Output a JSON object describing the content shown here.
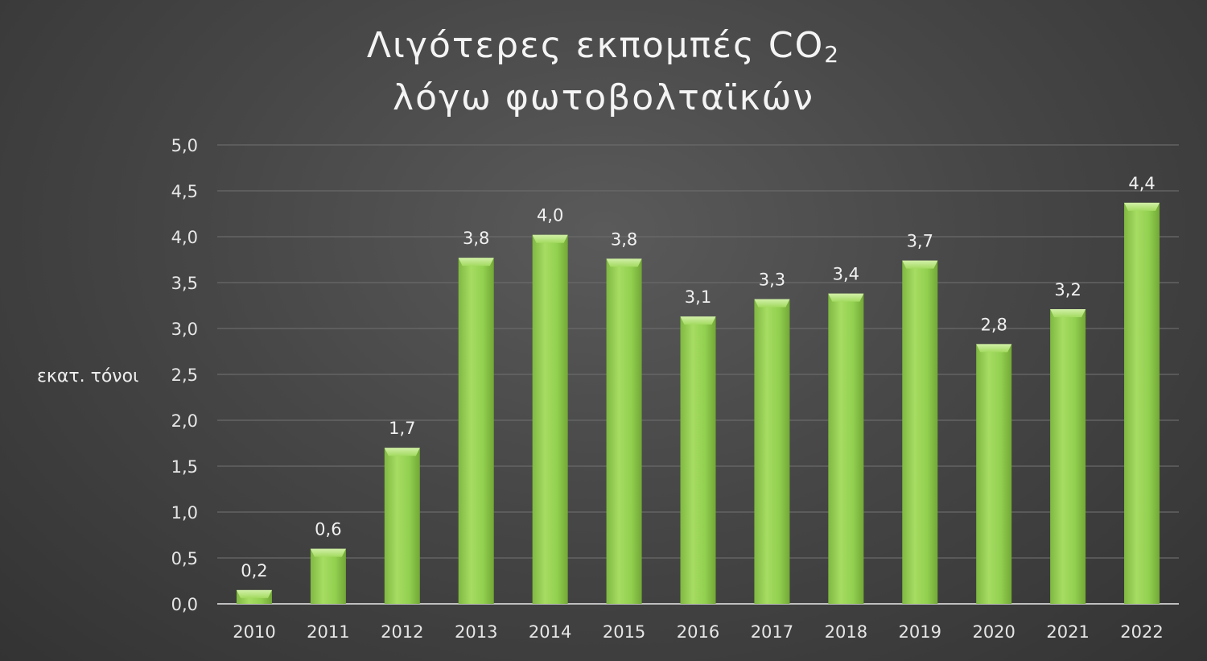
{
  "chart_data": {
    "type": "bar",
    "title_main": "Λιγότερες εκπομπές CO",
    "title_subscript": "2",
    "title_line2": "λόγω φωτοβολταϊκών",
    "ylabel": "εκατ. τόνοι",
    "xlabel": "",
    "categories": [
      "2010",
      "2011",
      "2012",
      "2013",
      "2014",
      "2015",
      "2016",
      "2017",
      "2018",
      "2019",
      "2020",
      "2021",
      "2022"
    ],
    "values": [
      0.15,
      0.6,
      1.7,
      3.77,
      4.02,
      3.76,
      3.13,
      3.32,
      3.38,
      3.74,
      2.83,
      3.21,
      4.37
    ],
    "data_labels": [
      "0,2",
      "0,6",
      "1,7",
      "3,8",
      "4,0",
      "3,8",
      "3,1",
      "3,3",
      "3,4",
      "3,7",
      "2,8",
      "3,2",
      "4,4"
    ],
    "ylim": [
      0,
      5
    ],
    "yticks": [
      0,
      0.5,
      1,
      1.5,
      2,
      2.5,
      3,
      3.5,
      4,
      4.5,
      5
    ],
    "ytick_labels": [
      "0,0",
      "0,5",
      "1,0",
      "1,5",
      "2,0",
      "2,5",
      "3,0",
      "3,5",
      "4,0",
      "4,5",
      "5,0"
    ],
    "grid": true,
    "legend": "none",
    "colors": {
      "bar": "#92d050",
      "bar_highlight": "#b6e27e",
      "bar_shadow": "#76ad3a",
      "grid": "#6a6a6a",
      "axis": "#bfbfbf"
    }
  }
}
